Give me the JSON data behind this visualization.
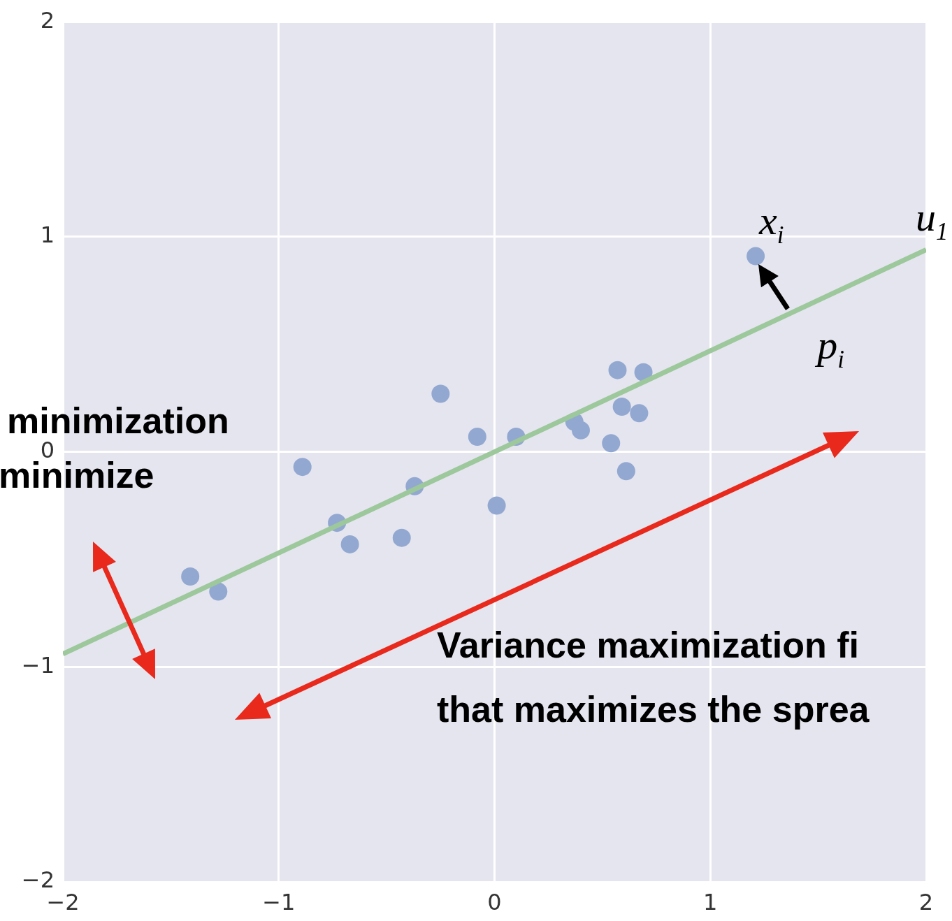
{
  "chart_data": {
    "type": "scatter",
    "series": [
      {
        "type": "scatter",
        "color": "#92a8d1",
        "x": [
          1.21,
          0.57,
          0.69,
          -0.25,
          0.59,
          0.67,
          0.37,
          0.4,
          -0.08,
          0.1,
          0.54,
          -0.89,
          0.61,
          -0.37,
          0.01,
          -0.73,
          -0.67,
          -0.43,
          -1.41,
          -1.28
        ],
        "values": [
          0.91,
          0.38,
          0.37,
          0.27,
          0.21,
          0.18,
          0.14,
          0.1,
          0.07,
          0.07,
          0.04,
          -0.07,
          -0.09,
          -0.16,
          -0.25,
          -0.33,
          -0.43,
          -0.4,
          -0.58,
          -0.65
        ],
        "marker": "circle"
      },
      {
        "type": "line",
        "color": "#9cc89c",
        "x": [
          -2,
          2
        ],
        "values": [
          -0.94,
          0.94
        ],
        "marker": "none"
      }
    ],
    "xlim": [
      -2,
      2
    ],
    "ylim": [
      -2,
      2
    ],
    "xticks": [
      {
        "value": -2,
        "label": "−2"
      },
      {
        "value": -1,
        "label": "−1"
      },
      0,
      1,
      2
    ],
    "yticks": [
      {
        "value": -2,
        "label": "−2"
      },
      {
        "value": -1,
        "label": "−1"
      },
      0,
      1,
      2
    ],
    "grid": true,
    "legend": false,
    "annotations": [
      {
        "text": "x$_{i}$",
        "x": 1.21,
        "y": 0.91
      },
      {
        "text": "p$_{i}$",
        "x": 1.35,
        "y": 0.64
      },
      {
        "text": "u$_{1}$",
        "x": 2,
        "y": 0.94
      },
      "minimization",
      "minimize",
      "Variance maximization fi",
      "that maximizes the sprea"
    ]
  }
}
